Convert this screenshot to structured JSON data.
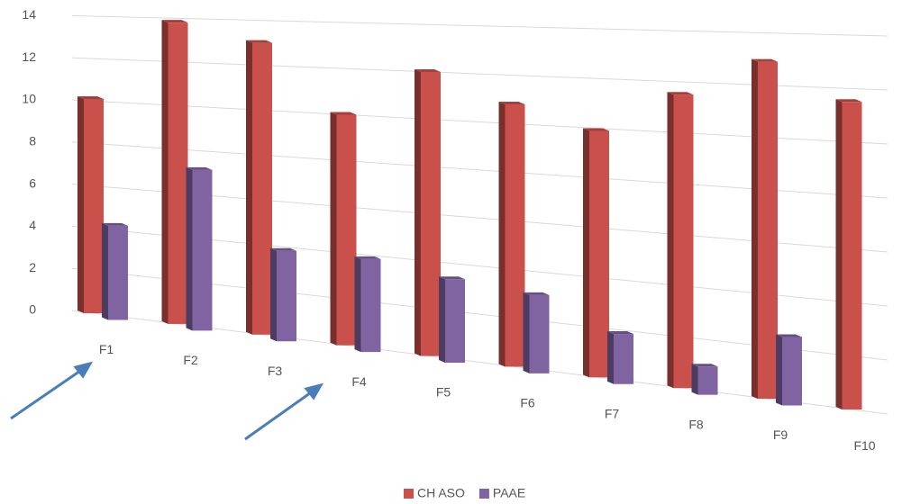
{
  "chart_data": {
    "type": "bar3d",
    "categories": [
      "F1",
      "F2",
      "F3",
      "F4",
      "F5",
      "F6",
      "F7",
      "F8",
      "F9",
      "F10"
    ],
    "series": [
      {
        "name": "CH ASO",
        "color": "#c9504b",
        "values": [
          10.1,
          13.8,
          13,
          10,
          12,
          10.8,
          9.9,
          11.5,
          12.9,
          11.5
        ]
      },
      {
        "name": "PAAE",
        "color": "#8064a2",
        "values": [
          4.4,
          7.3,
          4,
          4,
          3.5,
          3.2,
          2,
          1.1,
          2.6,
          0
        ]
      }
    ],
    "ylim": [
      0,
      14
    ],
    "yticks": [
      0,
      2,
      4,
      6,
      8,
      10,
      12,
      14
    ],
    "grid": true
  }
}
